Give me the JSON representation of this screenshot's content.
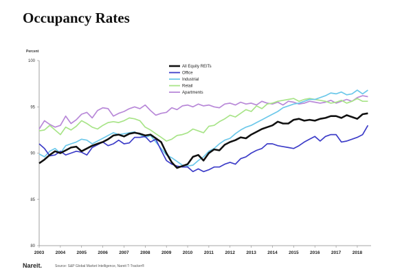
{
  "page": {
    "title": "Occupancy Rates",
    "logo": "Nareit.",
    "source": "Source: S&P Global Market Intelligence, Nareit T-Tracker®"
  },
  "chart_data": {
    "type": "line",
    "ylabel": "Percent",
    "ylim": [
      80,
      100
    ],
    "yticks": [
      80,
      85,
      90,
      95,
      100
    ],
    "xlim": [
      2003,
      2018.65
    ],
    "xticks": [
      2003,
      2004,
      2005,
      2006,
      2007,
      2008,
      2009,
      2010,
      2011,
      2012,
      2013,
      2014,
      2015,
      2016,
      2017,
      2018
    ],
    "grid": false,
    "legend_position": "top-center",
    "series": [
      {
        "name": "All Equity REITs",
        "color": "#111111",
        "x": [
          2003,
          2003.25,
          2003.5,
          2003.75,
          2004,
          2004.25,
          2004.5,
          2004.75,
          2005,
          2005.25,
          2005.5,
          2005.75,
          2006,
          2006.25,
          2006.5,
          2006.75,
          2007,
          2007.25,
          2007.5,
          2007.75,
          2008,
          2008.25,
          2008.5,
          2008.75,
          2009,
          2009.25,
          2009.5,
          2009.75,
          2010,
          2010.25,
          2010.5,
          2010.75,
          2011,
          2011.25,
          2011.5,
          2011.75,
          2012,
          2012.25,
          2012.5,
          2012.75,
          2013,
          2013.25,
          2013.5,
          2013.75,
          2014,
          2014.25,
          2014.5,
          2014.75,
          2015,
          2015.25,
          2015.5,
          2015.75,
          2016,
          2016.25,
          2016.5,
          2016.75,
          2017,
          2017.25,
          2017.5,
          2017.75,
          2018,
          2018.25,
          2018.5
        ],
        "y": [
          88.9,
          89.3,
          89.8,
          90.2,
          90.0,
          90.3,
          90.6,
          90.7,
          90.2,
          90.5,
          90.8,
          91.0,
          91.2,
          91.5,
          91.9,
          92.0,
          91.8,
          92.1,
          92.2,
          92.1,
          91.9,
          92.0,
          91.6,
          91.2,
          90.0,
          89.0,
          88.4,
          88.6,
          88.8,
          89.6,
          89.8,
          89.2,
          90.0,
          90.4,
          90.3,
          90.9,
          91.2,
          91.4,
          91.7,
          91.6,
          92.0,
          92.3,
          92.6,
          92.8,
          93.0,
          93.4,
          93.2,
          93.2,
          93.6,
          93.7,
          93.5,
          93.6,
          93.5,
          93.7,
          93.8,
          94.0,
          94.0,
          93.8,
          94.1,
          93.9,
          93.7,
          94.2,
          94.3
        ]
      },
      {
        "name": "Office",
        "color": "#3c3cc8",
        "x": [
          2003,
          2003.25,
          2003.5,
          2003.75,
          2004,
          2004.25,
          2004.5,
          2004.75,
          2005,
          2005.25,
          2005.5,
          2005.75,
          2006,
          2006.25,
          2006.5,
          2006.75,
          2007,
          2007.25,
          2007.5,
          2007.75,
          2008,
          2008.25,
          2008.5,
          2008.75,
          2009,
          2009.25,
          2009.5,
          2009.75,
          2010,
          2010.25,
          2010.5,
          2010.75,
          2011,
          2011.25,
          2011.5,
          2011.75,
          2012,
          2012.25,
          2012.5,
          2012.75,
          2013,
          2013.25,
          2013.5,
          2013.75,
          2014,
          2014.25,
          2014.5,
          2014.75,
          2015,
          2015.25,
          2015.5,
          2015.75,
          2016,
          2016.25,
          2016.5,
          2016.75,
          2017,
          2017.25,
          2017.5,
          2017.75,
          2018,
          2018.25,
          2018.5
        ],
        "y": [
          91.0,
          90.5,
          89.7,
          89.8,
          90.2,
          89.8,
          90.0,
          90.2,
          90.1,
          89.8,
          90.6,
          90.9,
          91.2,
          90.8,
          91.0,
          91.4,
          91.0,
          91.1,
          91.7,
          91.7,
          91.8,
          91.2,
          91.5,
          90.3,
          89.2,
          88.8,
          88.6,
          88.5,
          88.5,
          88.0,
          88.3,
          88.0,
          88.2,
          88.5,
          88.5,
          88.8,
          89.0,
          88.8,
          89.4,
          89.6,
          90.0,
          90.3,
          90.5,
          91.0,
          91.0,
          90.8,
          90.7,
          90.6,
          90.5,
          90.8,
          91.2,
          91.5,
          91.8,
          91.3,
          91.8,
          92.0,
          92.0,
          91.2,
          91.3,
          91.5,
          91.7,
          92.0,
          93.0
        ]
      },
      {
        "name": "Industrial",
        "color": "#6cc8ea",
        "x": [
          2003,
          2003.25,
          2003.5,
          2003.75,
          2004,
          2004.25,
          2004.5,
          2004.75,
          2005,
          2005.25,
          2005.5,
          2005.75,
          2006,
          2006.25,
          2006.5,
          2006.75,
          2007,
          2007.25,
          2007.5,
          2007.75,
          2008,
          2008.25,
          2008.5,
          2008.75,
          2009,
          2009.25,
          2009.5,
          2009.75,
          2010,
          2010.25,
          2010.5,
          2010.75,
          2011,
          2011.25,
          2011.5,
          2011.75,
          2012,
          2012.25,
          2012.5,
          2012.75,
          2013,
          2013.25,
          2013.5,
          2013.75,
          2014,
          2014.25,
          2014.5,
          2014.75,
          2015,
          2015.25,
          2015.5,
          2015.75,
          2016,
          2016.25,
          2016.5,
          2016.75,
          2017,
          2017.25,
          2017.5,
          2017.75,
          2018,
          2018.25,
          2018.5
        ],
        "y": [
          89.9,
          89.6,
          90.2,
          90.5,
          90.0,
          90.8,
          91.0,
          91.2,
          91.5,
          91.4,
          91.0,
          91.3,
          91.6,
          91.9,
          92.2,
          92.0,
          92.1,
          92.2,
          92.3,
          92.0,
          91.7,
          91.9,
          91.2,
          90.5,
          89.8,
          89.5,
          89.1,
          88.7,
          88.6,
          88.7,
          89.2,
          89.6,
          90.2,
          90.5,
          91.0,
          91.4,
          91.6,
          92.1,
          92.5,
          92.8,
          93.0,
          93.3,
          93.6,
          93.9,
          94.2,
          94.5,
          94.9,
          95.1,
          95.3,
          95.4,
          95.6,
          95.8,
          95.8,
          96.0,
          96.2,
          96.5,
          96.4,
          96.6,
          96.3,
          96.4,
          96.8,
          96.4,
          96.8
        ]
      },
      {
        "name": "Retail",
        "color": "#a8e488",
        "x": [
          2003,
          2003.25,
          2003.5,
          2003.75,
          2004,
          2004.25,
          2004.5,
          2004.75,
          2005,
          2005.25,
          2005.5,
          2005.75,
          2006,
          2006.25,
          2006.5,
          2006.75,
          2007,
          2007.25,
          2007.5,
          2007.75,
          2008,
          2008.25,
          2008.5,
          2008.75,
          2009,
          2009.25,
          2009.5,
          2009.75,
          2010,
          2010.25,
          2010.5,
          2010.75,
          2011,
          2011.25,
          2011.5,
          2011.75,
          2012,
          2012.25,
          2012.5,
          2012.75,
          2013,
          2013.25,
          2013.5,
          2013.75,
          2014,
          2014.25,
          2014.5,
          2014.75,
          2015,
          2015.25,
          2015.5,
          2015.75,
          2016,
          2016.25,
          2016.5,
          2016.75,
          2017,
          2017.25,
          2017.5,
          2017.75,
          2018,
          2018.25,
          2018.5
        ],
        "y": [
          92.4,
          92.5,
          93.0,
          92.5,
          92.0,
          92.8,
          92.5,
          92.9,
          93.5,
          93.2,
          92.8,
          92.6,
          93.0,
          93.3,
          93.4,
          93.3,
          93.5,
          93.8,
          93.7,
          93.5,
          92.8,
          92.5,
          92.1,
          91.7,
          91.3,
          91.5,
          91.9,
          92.0,
          92.2,
          92.6,
          92.4,
          92.2,
          92.9,
          93.0,
          93.4,
          93.7,
          94.1,
          93.9,
          94.3,
          94.7,
          94.5,
          95.1,
          94.8,
          95.3,
          95.4,
          95.6,
          95.7,
          95.8,
          95.9,
          95.6,
          95.8,
          95.9,
          95.8,
          95.7,
          95.6,
          95.4,
          95.5,
          95.7,
          95.4,
          95.6,
          95.9,
          95.6,
          95.6
        ]
      },
      {
        "name": "Apartments",
        "color": "#b888d8",
        "x": [
          2003,
          2003.25,
          2003.5,
          2003.75,
          2004,
          2004.25,
          2004.5,
          2004.75,
          2005,
          2005.25,
          2005.5,
          2005.75,
          2006,
          2006.25,
          2006.5,
          2006.75,
          2007,
          2007.25,
          2007.5,
          2007.75,
          2008,
          2008.25,
          2008.5,
          2008.75,
          2009,
          2009.25,
          2009.5,
          2009.75,
          2010,
          2010.25,
          2010.5,
          2010.75,
          2011,
          2011.25,
          2011.5,
          2011.75,
          2012,
          2012.25,
          2012.5,
          2012.75,
          2013,
          2013.25,
          2013.5,
          2013.75,
          2014,
          2014.25,
          2014.5,
          2014.75,
          2015,
          2015.25,
          2015.5,
          2015.75,
          2016,
          2016.25,
          2016.5,
          2016.75,
          2017,
          2017.25,
          2017.5,
          2017.75,
          2018,
          2018.25,
          2018.5
        ],
        "y": [
          92.6,
          93.5,
          93.1,
          92.8,
          93.0,
          94.0,
          93.2,
          93.6,
          94.2,
          94.4,
          93.8,
          94.6,
          94.9,
          94.8,
          94.0,
          94.3,
          94.5,
          94.8,
          95.0,
          94.8,
          95.2,
          94.6,
          94.1,
          94.3,
          94.4,
          94.9,
          94.7,
          95.1,
          95.2,
          95.0,
          95.3,
          95.1,
          95.2,
          95.0,
          94.9,
          95.3,
          95.4,
          95.2,
          95.5,
          95.3,
          95.4,
          95.2,
          95.6,
          95.4,
          95.3,
          95.5,
          95.2,
          95.6,
          95.5,
          95.3,
          95.4,
          95.6,
          95.5,
          95.4,
          95.5,
          95.7,
          95.4,
          95.6,
          95.8,
          95.6,
          96.0,
          96.2,
          96.1
        ]
      }
    ]
  }
}
